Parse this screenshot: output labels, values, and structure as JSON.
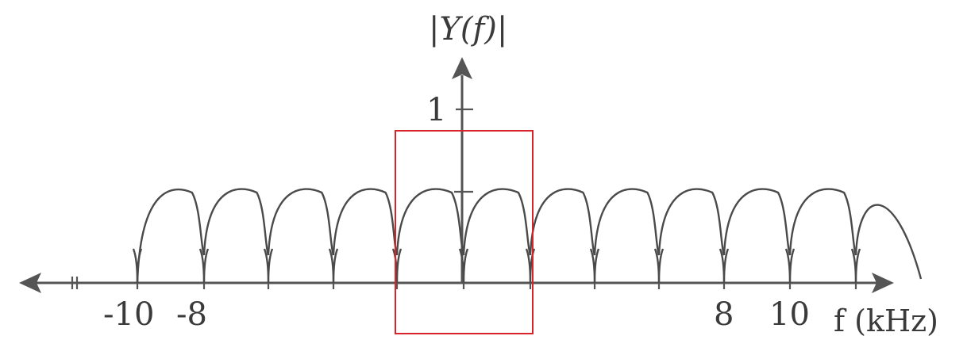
{
  "diagram": {
    "y_axis_label": "|Y(f)|",
    "x_axis_label": "f (kHz)",
    "y_tick_label": "1",
    "x_tick_labels": [
      "-10",
      "-8",
      "8",
      "10"
    ],
    "colors": {
      "curve": "#4a4a4a",
      "axis": "#555555",
      "highlight_box": "#d9232a",
      "text": "#3a3a3a"
    }
  }
}
